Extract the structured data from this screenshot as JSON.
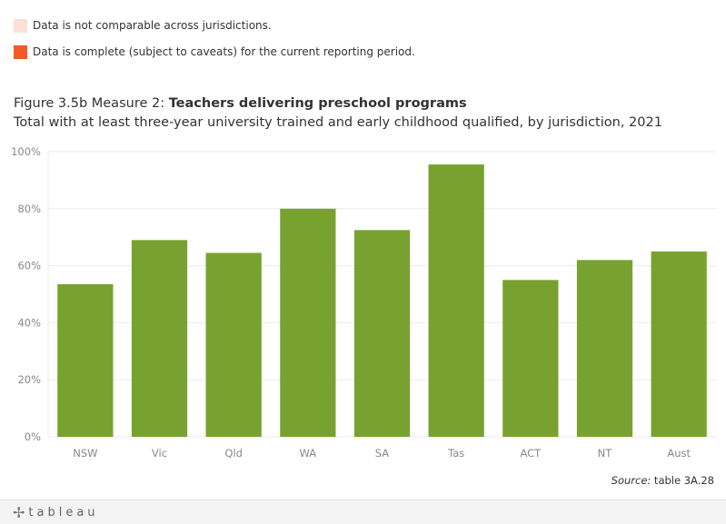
{
  "legend": {
    "items": [
      {
        "label": "Data is not comparable across jurisdictions.",
        "color": "#fce0d6"
      },
      {
        "label": "Data is complete (subject to caveats) for the current reporting period.",
        "color": "#f05a24"
      }
    ]
  },
  "title": {
    "prefix": "Figure 3.5b Measure 2: ",
    "bold": "Teachers delivering preschool programs",
    "subtitle": "Total with at least three-year university trained and early childhood qualified, by jurisdiction, 2021"
  },
  "source": {
    "prefix": "Source:",
    "text": " table 3A.28"
  },
  "footer": {
    "logo_text": "tableau",
    "logo_icon": "tableau-plus-icon"
  },
  "colors": {
    "bar": "#78a22f",
    "grid": "#ebebeb",
    "axis_text": "#888888"
  },
  "chart_data": {
    "type": "bar",
    "categories": [
      "NSW",
      "Vic",
      "Qld",
      "WA",
      "SA",
      "Tas",
      "ACT",
      "NT",
      "Aust"
    ],
    "values": [
      53.5,
      69,
      64.5,
      80,
      72.5,
      95.5,
      55,
      62,
      65
    ],
    "ylim": [
      0,
      100
    ],
    "yticks": [
      "0%",
      "20%",
      "40%",
      "60%",
      "80%",
      "100%"
    ],
    "ytick_values": [
      0,
      20,
      40,
      60,
      80,
      100
    ],
    "grid": true,
    "xlabel": "",
    "ylabel": ""
  }
}
